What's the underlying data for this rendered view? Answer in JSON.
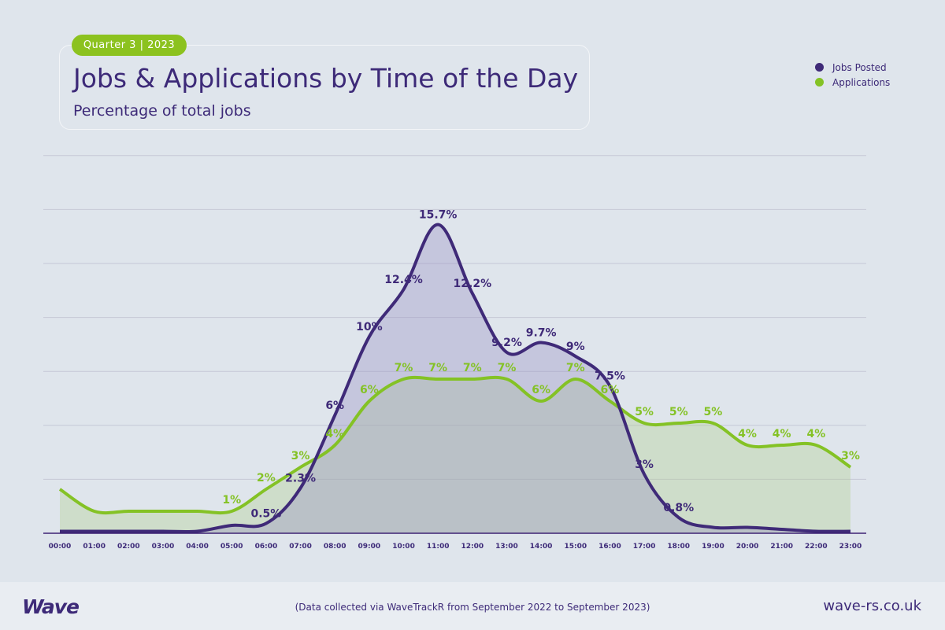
{
  "badge": "Quarter 3 | 2023",
  "footer": {
    "logo": "Wave",
    "note": "(Data collected via WaveTrackR from September 2022 to September 2023)",
    "url": "wave-rs.co.uk"
  },
  "colors": {
    "jobs": "#3f2a78",
    "applications": "#84c225",
    "background": "#dfe5ec"
  },
  "chart_data": {
    "type": "area",
    "title": "Jobs & Applications by Time of the Day",
    "subtitle": "Percentage of total jobs",
    "legend_position": "top-right",
    "grid": true,
    "categories": [
      "00:00",
      "01:00",
      "02:00",
      "03:00",
      "04:00",
      "05:00",
      "06:00",
      "07:00",
      "08:00",
      "09:00",
      "10:00",
      "11:00",
      "12:00",
      "13:00",
      "14:00",
      "15:00",
      "16:00",
      "17:00",
      "18:00",
      "19:00",
      "20:00",
      "21:00",
      "22:00",
      "23:00"
    ],
    "series": [
      {
        "name": "Jobs Posted",
        "values": [
          0.1,
          0.1,
          0.1,
          0.1,
          0.1,
          0.4,
          0.5,
          2.3,
          6,
          10,
          12.4,
          15.7,
          12.2,
          9.2,
          9.7,
          9,
          7.5,
          3,
          0.8,
          0.3,
          0.3,
          0.2,
          0.1,
          0.1
        ],
        "labels": [
          "",
          "",
          "",
          "",
          "",
          "",
          "0.5%",
          "2.3%",
          "6%",
          "10%",
          "12.4%",
          "15.7%",
          "12.2%",
          "9.2%",
          "9.7%",
          "9%",
          "7.5%",
          "3%",
          "0.8%",
          "",
          "",
          "",
          "",
          ""
        ]
      },
      {
        "name": "Applications",
        "values": [
          2,
          1,
          1,
          1,
          1,
          1,
          2,
          3,
          4,
          6,
          7,
          7,
          7,
          7,
          6,
          7,
          6,
          5,
          5,
          5,
          4,
          4,
          4,
          3
        ],
        "labels": [
          "",
          "",
          "",
          "",
          "",
          "1%",
          "2%",
          "3%",
          "4%",
          "6%",
          "7%",
          "7%",
          "7%",
          "7%",
          "6%",
          "7%",
          "6%",
          "5%",
          "5%",
          "5%",
          "4%",
          "4%",
          "4%",
          "3%"
        ]
      }
    ]
  }
}
